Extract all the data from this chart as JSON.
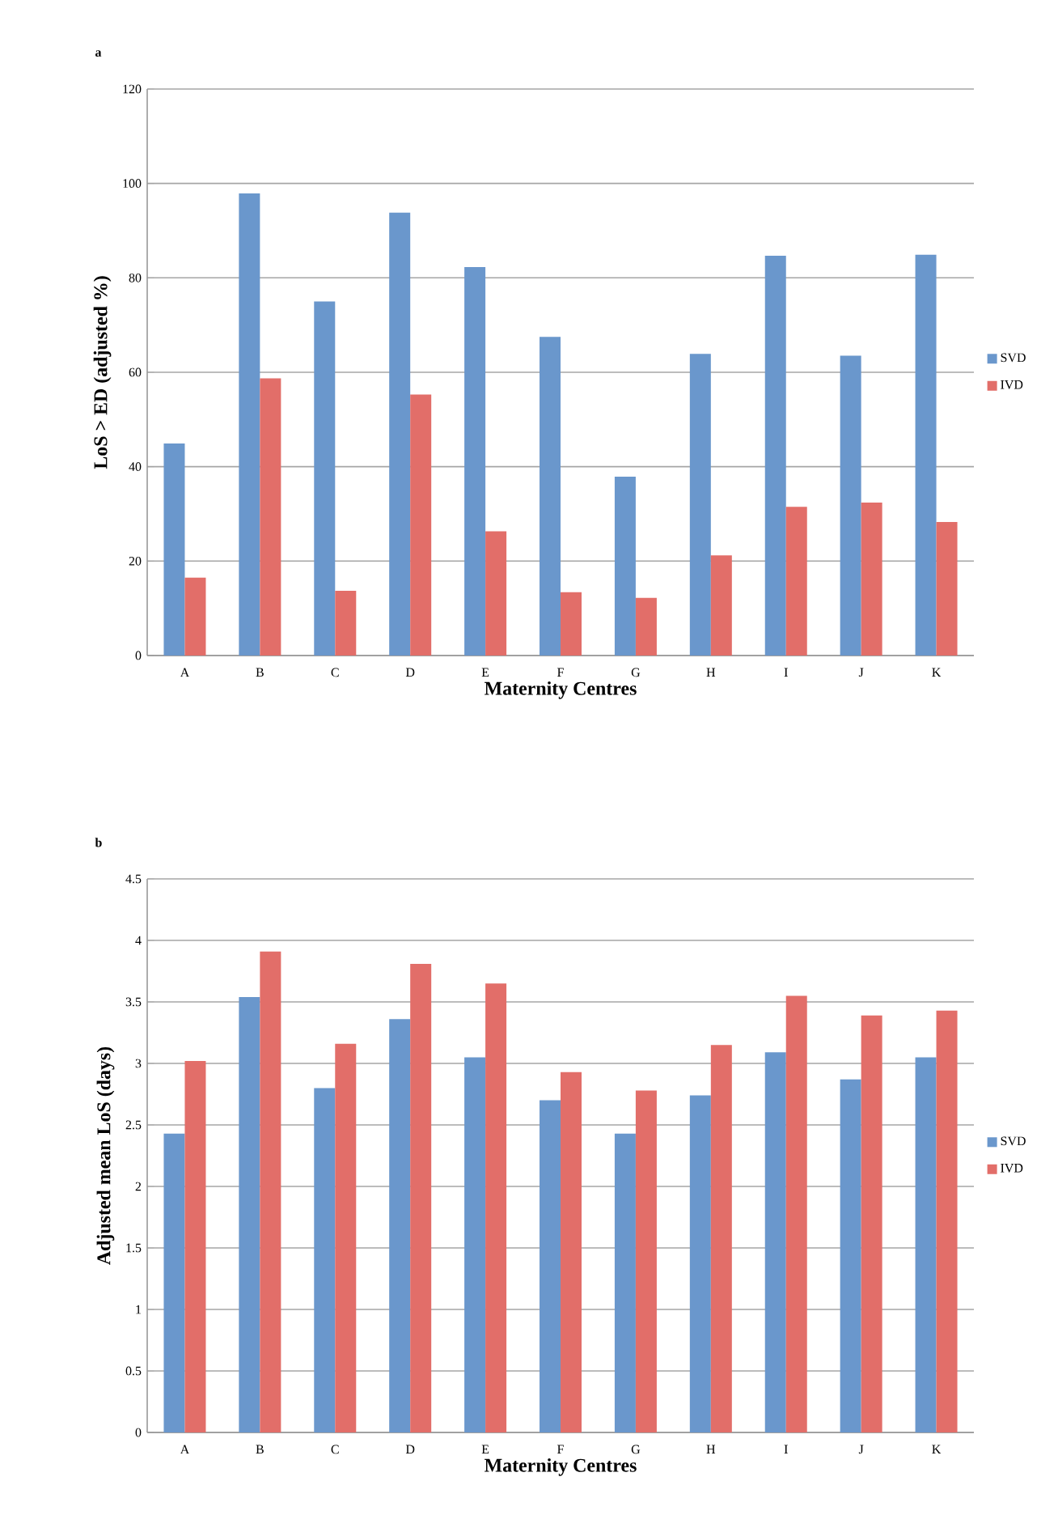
{
  "chart_data": [
    {
      "type": "bar",
      "title": "a",
      "xlabel": "Maternity Centres",
      "ylabel": "LoS > ED (adjusted %)",
      "categories": [
        "A",
        "B",
        "C",
        "D",
        "E",
        "F",
        "G",
        "H",
        "I",
        "J",
        "K"
      ],
      "ylim": [
        0,
        120
      ],
      "yticks": [
        0,
        20,
        40,
        60,
        80,
        100,
        120
      ],
      "grid": "y",
      "legend": "right",
      "series": [
        {
          "name": "SVD",
          "color": "#6a97cc",
          "values": [
            44.9,
            97.9,
            75.0,
            93.8,
            82.3,
            67.5,
            37.9,
            63.9,
            84.7,
            63.5,
            84.9
          ]
        },
        {
          "name": "IVD",
          "color": "#e26e69",
          "values": [
            16.5,
            58.7,
            13.7,
            55.3,
            26.3,
            13.4,
            12.2,
            21.2,
            31.5,
            32.4,
            28.3
          ]
        }
      ]
    },
    {
      "type": "bar",
      "title": "b",
      "xlabel": "Maternity Centres",
      "ylabel": "Adjusted mean LoS (days)",
      "categories": [
        "A",
        "B",
        "C",
        "D",
        "E",
        "F",
        "G",
        "H",
        "I",
        "J",
        "K"
      ],
      "ylim": [
        0,
        4.5
      ],
      "yticks": [
        0,
        0.5,
        1,
        1.5,
        2,
        2.5,
        3,
        3.5,
        4,
        4.5
      ],
      "grid": "y",
      "legend": "right",
      "series": [
        {
          "name": "SVD",
          "color": "#6a97cc",
          "values": [
            2.43,
            3.54,
            2.8,
            3.36,
            3.05,
            2.7,
            2.43,
            2.74,
            3.09,
            2.87,
            3.05
          ]
        },
        {
          "name": "IVD",
          "color": "#e26e69",
          "values": [
            3.02,
            3.91,
            3.16,
            3.81,
            3.65,
            2.93,
            2.78,
            3.15,
            3.55,
            3.39,
            3.43
          ]
        }
      ]
    }
  ]
}
